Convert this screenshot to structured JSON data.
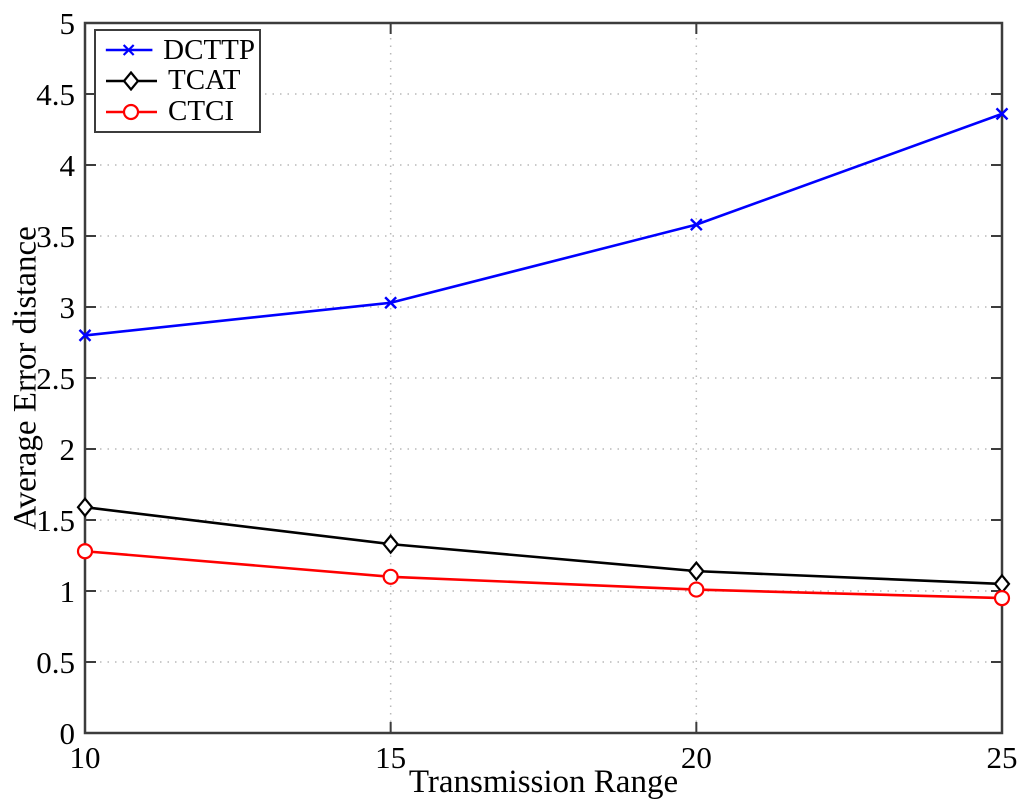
{
  "axis": {
    "color": "#3c3c3c",
    "grid_color": "#b9b9b9",
    "text_color": "#000000",
    "tick_label_size": 31
  },
  "chart_data": {
    "type": "line",
    "title": "",
    "xlabel": "Transmission Range",
    "ylabel": "Average Error distance",
    "x": [
      10,
      15,
      20,
      25
    ],
    "xlim": [
      10,
      25
    ],
    "ylim": [
      0,
      5
    ],
    "xticks": [
      10,
      15,
      20,
      25
    ],
    "yticks": [
      0,
      0.5,
      1,
      1.5,
      2,
      2.5,
      3,
      3.5,
      4,
      4.5,
      5
    ],
    "grid": true,
    "grid_style": "dotted",
    "legend_position": "top-left",
    "series": [
      {
        "name": "DCTTP",
        "color": "#0000ff",
        "marker": "x",
        "values": [
          2.8,
          3.03,
          3.58,
          4.36
        ]
      },
      {
        "name": "TCAT",
        "color": "#000000",
        "marker": "diamond",
        "values": [
          1.59,
          1.33,
          1.14,
          1.05
        ]
      },
      {
        "name": "CTCI",
        "color": "#ff0000",
        "marker": "circle",
        "values": [
          1.28,
          1.1,
          1.01,
          0.95
        ]
      }
    ]
  }
}
